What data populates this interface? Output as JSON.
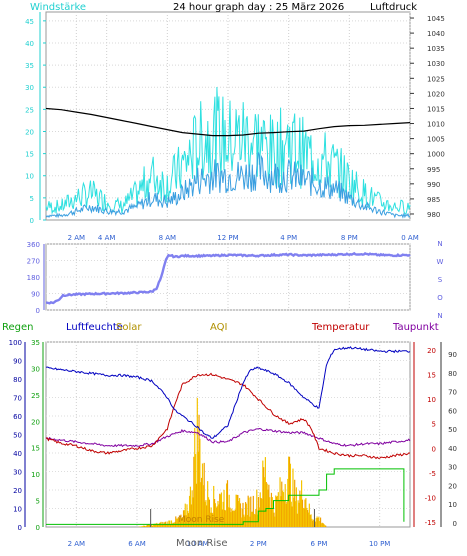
{
  "colors": {
    "wind_speed": "#3b9fe0",
    "wind_gust": "#2ee0e0",
    "pressure": "#000000",
    "direction": "#8080f0",
    "humidity": "#0000c0",
    "temperature": "#c00000",
    "dewpoint": "#8000a0",
    "rain": "#00c000",
    "solar": "#f5c400",
    "moon_label": "#c08000",
    "axis_cyan": "#20d0d0",
    "axis_blue": "#6060e0",
    "axis_green": "#10a010",
    "axis_red": "#c00000",
    "axis_dark": "#333333"
  },
  "chart_data": [
    {
      "type": "line",
      "title": "24 hour graph day : 25 März 2026",
      "left_label": "Windstärke",
      "right_label": "Luftdruck",
      "x_ticks": [
        "2 AM",
        "4 AM",
        "8 AM",
        "12 PM",
        "4 PM",
        "8 PM",
        "0 AM"
      ],
      "y_left": {
        "range": [
          0,
          47
        ],
        "ticks": [
          0,
          5,
          10,
          15,
          20,
          25,
          30,
          35,
          40,
          45
        ]
      },
      "y_right": {
        "range": [
          978,
          1047
        ],
        "ticks": [
          980,
          985,
          990,
          995,
          1000,
          1005,
          1010,
          1015,
          1020,
          1025,
          1030,
          1035,
          1040,
          1045
        ]
      },
      "x_range_hours": [
        0,
        24
      ],
      "series": [
        {
          "name": "pressure_line",
          "axis": "right",
          "x": [
            0,
            1,
            2,
            3,
            4,
            5,
            6,
            7,
            8,
            9,
            10,
            11,
            12,
            13,
            14,
            15,
            16,
            17,
            18,
            19,
            20,
            21,
            22,
            23,
            24
          ],
          "values": [
            1015,
            1014.6,
            1013.8,
            1013,
            1012,
            1011,
            1010,
            1009,
            1008,
            1007,
            1006.5,
            1006,
            1006,
            1006.2,
            1006.8,
            1007,
            1007.3,
            1007.5,
            1008.3,
            1009,
            1009.3,
            1009.4,
            1009.7,
            1010,
            1010.3
          ]
        },
        {
          "name": "wind_speed_line",
          "axis": "left",
          "x": [
            0,
            1,
            2,
            3,
            4,
            5,
            6,
            7,
            8,
            9,
            10,
            11,
            12,
            13,
            14,
            15,
            16,
            17,
            18,
            19,
            20,
            21,
            22,
            23,
            24
          ],
          "values": [
            1,
            1,
            2,
            3,
            2,
            2,
            3,
            5,
            4,
            6,
            9,
            10,
            10,
            10,
            11,
            10,
            10,
            9,
            8,
            7,
            5,
            3,
            2,
            1,
            1
          ]
        },
        {
          "name": "wind_gust_line",
          "axis": "left",
          "x": [
            0,
            1,
            2,
            3,
            4,
            5,
            6,
            7,
            8,
            9,
            10,
            11,
            12,
            13,
            14,
            15,
            16,
            17,
            18,
            19,
            20,
            21,
            22,
            23,
            24
          ],
          "values": [
            3,
            3,
            5,
            6,
            4,
            3,
            6,
            10,
            8,
            12,
            17,
            20,
            18,
            19,
            18,
            15,
            18,
            15,
            14,
            12,
            9,
            6,
            4,
            3,
            3
          ]
        }
      ]
    },
    {
      "type": "scatter",
      "left_ticks": [
        0,
        90,
        180,
        270,
        360
      ],
      "right_labels": [
        "N",
        "W",
        "S",
        "O",
        "N"
      ],
      "y_range": [
        0,
        360
      ],
      "x_range_hours": [
        0,
        24
      ],
      "series": [
        {
          "name": "wind_direction_line",
          "x": [
            0,
            0.5,
            0.9,
            1.1,
            2,
            3,
            4,
            5,
            6,
            7,
            7.3,
            7.6,
            7.9,
            8.1,
            8.5,
            9,
            10,
            11,
            12,
            13,
            14,
            15,
            16,
            17,
            18,
            19,
            20,
            21,
            22,
            23,
            23.8
          ],
          "values": [
            40,
            40,
            60,
            80,
            85,
            88,
            90,
            92,
            95,
            100,
            120,
            180,
            270,
            300,
            290,
            295,
            295,
            296,
            300,
            298,
            296,
            300,
            302,
            298,
            300,
            302,
            305,
            306,
            300,
            298,
            300
          ]
        }
      ]
    },
    {
      "type": "line",
      "header_labels": [
        "Regen",
        "Luftfeuchte",
        "Solar",
        "AQI",
        "Temperatur",
        "Taupunkt"
      ],
      "x_ticks": [
        "2 AM",
        "6 AM",
        "10 AM",
        "2 PM",
        "6 PM",
        "10 PM"
      ],
      "moon_labels": [
        "Moon Rise",
        "Moon Rise"
      ],
      "y_left_humidity": {
        "range": [
          0,
          100
        ],
        "ticks": [
          0,
          10,
          20,
          30,
          40,
          50,
          60,
          70,
          80,
          90,
          100
        ]
      },
      "y_left_rain": {
        "range": [
          0,
          35
        ],
        "ticks": [
          0,
          5,
          10,
          15,
          20,
          25,
          30,
          35
        ]
      },
      "y_right_temp": {
        "range": [
          -15,
          20
        ],
        "ticks": [
          -15,
          -10,
          -5,
          0,
          5,
          10,
          15,
          20
        ]
      },
      "y_right_dew": {
        "range": [
          0,
          90
        ],
        "ticks": [
          0,
          10,
          20,
          30,
          40,
          50,
          60,
          70,
          80,
          90
        ]
      },
      "x_range_hours": [
        0,
        24
      ],
      "series": [
        {
          "name": "humidity_line",
          "axis": "left_humidity",
          "x": [
            0,
            1,
            2,
            3,
            4,
            5,
            6,
            7,
            8,
            8.5,
            9,
            10,
            10.5,
            11,
            12,
            13,
            13.5,
            14,
            15,
            16,
            17,
            18,
            18.5,
            19,
            20,
            21,
            22,
            23,
            24
          ],
          "values": [
            86,
            85,
            84,
            83,
            82,
            82,
            81,
            79,
            70,
            63,
            60,
            54,
            50,
            48,
            55,
            78,
            85,
            86,
            83,
            78,
            70,
            64,
            88,
            96,
            97,
            96,
            95,
            95,
            95
          ]
        },
        {
          "name": "temperature_line",
          "axis": "right_temp",
          "x": [
            0,
            1,
            2,
            3,
            4,
            5,
            6,
            7,
            8,
            8.5,
            9,
            10,
            11,
            12,
            13,
            14,
            15,
            16,
            17,
            17.5,
            18,
            19,
            20,
            21,
            22,
            23,
            24
          ],
          "values": [
            2,
            1,
            0.5,
            -0.5,
            -1,
            -0.5,
            0,
            0.5,
            4,
            9,
            13,
            15,
            15,
            14,
            13,
            10,
            7,
            5,
            6,
            4,
            0,
            -1,
            -1.5,
            -1.5,
            -2,
            -1.5,
            -1
          ]
        },
        {
          "name": "dewpoint_line",
          "axis": "right_dew",
          "x": [
            0,
            1,
            2,
            3,
            4,
            5,
            6,
            7,
            8,
            9,
            10,
            11,
            12,
            13,
            14,
            15,
            16,
            17,
            18,
            19,
            20,
            21,
            22,
            23,
            24
          ],
          "values": [
            48,
            47,
            46,
            45,
            44,
            44,
            44,
            45,
            49,
            52,
            51,
            46,
            46,
            51,
            53,
            52,
            51,
            51,
            48,
            45,
            44,
            45,
            45,
            46,
            47
          ]
        },
        {
          "name": "rain_line",
          "axis": "left_rain",
          "x": [
            0,
            12,
            13,
            14,
            14.5,
            15,
            16,
            17,
            18,
            18.5,
            19,
            20,
            22,
            23.5,
            23.6
          ],
          "values": [
            0.5,
            0.5,
            1,
            3,
            3.5,
            5,
            6,
            6,
            7,
            10,
            11,
            11,
            11,
            11,
            1
          ]
        },
        {
          "name": "solar_area",
          "axis": "left_rain",
          "x": [
            6,
            7,
            8,
            9,
            9.5,
            10,
            10.5,
            11,
            12,
            12.5,
            13,
            14,
            14.5,
            15,
            16,
            16.5,
            17,
            17.5,
            18,
            18.5
          ],
          "values": [
            0,
            0.5,
            1,
            2,
            6,
            22,
            8,
            6,
            7,
            5,
            4,
            6,
            13,
            4,
            12,
            6,
            8,
            2,
            2,
            0
          ]
        }
      ]
    }
  ]
}
